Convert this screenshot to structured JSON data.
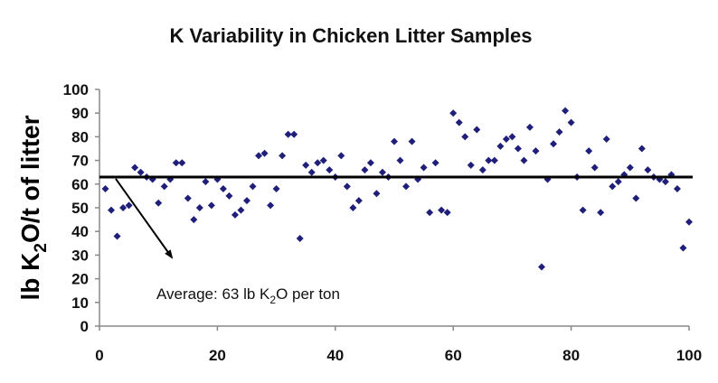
{
  "chart_data": {
    "type": "scatter",
    "title": "K Variability in Chicken Litter Samples",
    "ylabel": {
      "pre": "lb K",
      "sub": "2",
      "post": "O/t of litter"
    },
    "xlabel": "",
    "xlim": [
      0,
      100
    ],
    "ylim": [
      0,
      100
    ],
    "xticks": [
      0,
      20,
      40,
      60,
      80,
      100
    ],
    "yticks": [
      0,
      10,
      20,
      30,
      40,
      50,
      60,
      70,
      80,
      90,
      100
    ],
    "grid": false,
    "legend": "none",
    "average_line": 63,
    "annotation": {
      "pre": "Average: 63 lb K",
      "sub": "2",
      "post": "O per ton"
    },
    "marker_color": "#1f1f7a",
    "series": [
      {
        "points": [
          [
            1,
            58
          ],
          [
            2,
            49
          ],
          [
            3,
            38
          ],
          [
            4,
            50
          ],
          [
            5,
            51
          ],
          [
            6,
            67
          ],
          [
            7,
            65
          ],
          [
            8,
            63
          ],
          [
            9,
            62
          ],
          [
            10,
            52
          ],
          [
            11,
            59
          ],
          [
            12,
            62
          ],
          [
            13,
            69
          ],
          [
            14,
            69
          ],
          [
            15,
            54
          ],
          [
            16,
            45
          ],
          [
            17,
            50
          ],
          [
            18,
            61
          ],
          [
            19,
            51
          ],
          [
            20,
            62
          ],
          [
            21,
            58
          ],
          [
            22,
            55
          ],
          [
            23,
            47
          ],
          [
            24,
            49
          ],
          [
            25,
            53
          ],
          [
            26,
            59
          ],
          [
            27,
            72
          ],
          [
            28,
            73
          ],
          [
            29,
            51
          ],
          [
            30,
            58
          ],
          [
            31,
            72
          ],
          [
            32,
            81
          ],
          [
            33,
            81
          ],
          [
            34,
            37
          ],
          [
            35,
            68
          ],
          [
            36,
            65
          ],
          [
            37,
            69
          ],
          [
            38,
            70
          ],
          [
            39,
            66
          ],
          [
            40,
            63
          ],
          [
            41,
            72
          ],
          [
            42,
            59
          ],
          [
            43,
            50
          ],
          [
            44,
            53
          ],
          [
            45,
            66
          ],
          [
            46,
            69
          ],
          [
            47,
            56
          ],
          [
            48,
            65
          ],
          [
            49,
            63
          ],
          [
            50,
            78
          ],
          [
            51,
            70
          ],
          [
            52,
            59
          ],
          [
            53,
            78
          ],
          [
            54,
            62
          ],
          [
            55,
            67
          ],
          [
            56,
            48
          ],
          [
            57,
            69
          ],
          [
            58,
            49
          ],
          [
            59,
            48
          ],
          [
            60,
            90
          ],
          [
            61,
            86
          ],
          [
            62,
            80
          ],
          [
            63,
            68
          ],
          [
            64,
            83
          ],
          [
            65,
            66
          ],
          [
            66,
            70
          ],
          [
            67,
            70
          ],
          [
            68,
            76
          ],
          [
            69,
            79
          ],
          [
            70,
            80
          ],
          [
            71,
            75
          ],
          [
            72,
            70
          ],
          [
            73,
            84
          ],
          [
            74,
            74
          ],
          [
            75,
            25
          ],
          [
            76,
            62
          ],
          [
            77,
            77
          ],
          [
            78,
            82
          ],
          [
            79,
            91
          ],
          [
            80,
            86
          ],
          [
            81,
            63
          ],
          [
            82,
            49
          ],
          [
            83,
            74
          ],
          [
            84,
            67
          ],
          [
            85,
            48
          ],
          [
            86,
            79
          ],
          [
            87,
            59
          ],
          [
            88,
            61
          ],
          [
            89,
            64
          ],
          [
            90,
            67
          ],
          [
            91,
            54
          ],
          [
            92,
            75
          ],
          [
            93,
            66
          ],
          [
            94,
            63
          ],
          [
            95,
            62
          ],
          [
            96,
            61
          ],
          [
            97,
            64
          ],
          [
            98,
            58
          ],
          [
            99,
            33
          ],
          [
            100,
            44
          ]
        ]
      }
    ]
  }
}
